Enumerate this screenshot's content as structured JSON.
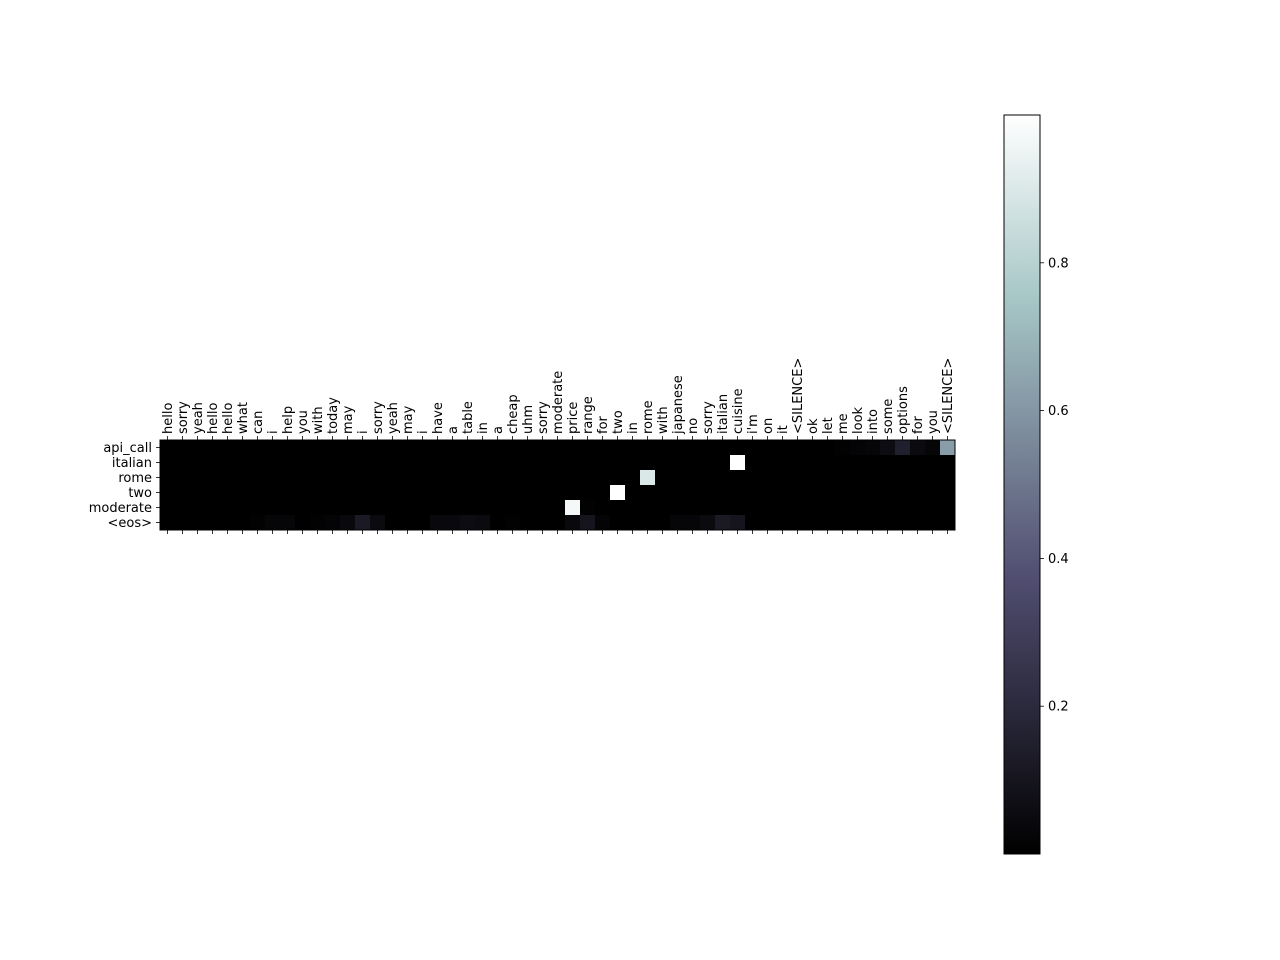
{
  "chart_data": {
    "type": "heatmap",
    "colormap": "bone",
    "x_labels": [
      "hello",
      "sorry",
      "yeah",
      "hello",
      "hello",
      "what",
      "can",
      "i",
      "help",
      "you",
      "with",
      "today",
      "may",
      "i",
      "sorry",
      "yeah",
      "may",
      "i",
      "have",
      "a",
      "table",
      "in",
      "a",
      "cheap",
      "uhm",
      "sorry",
      "moderate",
      "price",
      "range",
      "for",
      "two",
      "in",
      "rome",
      "with",
      "japanese",
      "no",
      "sorry",
      "italian",
      "cuisine",
      "i'm",
      "on",
      "it",
      "<SILENCE>",
      "ok",
      "let",
      "me",
      "look",
      "into",
      "some",
      "options",
      "for",
      "you",
      "<SILENCE>"
    ],
    "y_labels": [
      "api_call",
      "italian",
      "rome",
      "two",
      "moderate",
      "<eos>"
    ],
    "colorbar": {
      "ticks": [
        0.2,
        0.4,
        0.6,
        0.8
      ],
      "tick_labels": [
        "0.2",
        "0.4",
        "0.6",
        "0.8"
      ],
      "vmin": 0.0,
      "vmax": 1.0
    },
    "values": [
      [
        0,
        0,
        0,
        0,
        0,
        0,
        0,
        0,
        0,
        0,
        0,
        0,
        0,
        0,
        0,
        0,
        0,
        0,
        0,
        0,
        0,
        0,
        0,
        0,
        0,
        0,
        0,
        0,
        0,
        0,
        0,
        0,
        0,
        0,
        0,
        0,
        0,
        0,
        0,
        0,
        0,
        0,
        0,
        0,
        0,
        0.01,
        0.02,
        0.03,
        0.06,
        0.15,
        0.05,
        0.03,
        0.62
      ],
      [
        0,
        0,
        0,
        0,
        0,
        0,
        0,
        0,
        0,
        0,
        0,
        0,
        0,
        0,
        0,
        0,
        0,
        0,
        0,
        0,
        0,
        0,
        0,
        0,
        0,
        0,
        0,
        0,
        0,
        0,
        0,
        0,
        0,
        0,
        0,
        0,
        0,
        0,
        1.0,
        0,
        0,
        0,
        0,
        0,
        0,
        0,
        0,
        0,
        0,
        0,
        0,
        0,
        0
      ],
      [
        0,
        0,
        0,
        0,
        0,
        0,
        0,
        0,
        0,
        0,
        0,
        0,
        0,
        0,
        0,
        0,
        0,
        0,
        0,
        0,
        0,
        0,
        0,
        0,
        0,
        0,
        0,
        0,
        0,
        0,
        0,
        0,
        0.9,
        0,
        0,
        0,
        0,
        0,
        0,
        0,
        0,
        0,
        0,
        0,
        0,
        0,
        0,
        0,
        0,
        0,
        0,
        0,
        0
      ],
      [
        0,
        0,
        0,
        0,
        0,
        0,
        0,
        0,
        0,
        0,
        0,
        0,
        0,
        0,
        0,
        0,
        0,
        0,
        0,
        0,
        0,
        0,
        0,
        0,
        0,
        0,
        0,
        0,
        0,
        0,
        1.0,
        0,
        0,
        0,
        0,
        0,
        0,
        0,
        0,
        0,
        0,
        0,
        0,
        0,
        0,
        0,
        0,
        0,
        0,
        0,
        0,
        0,
        0
      ],
      [
        0,
        0,
        0,
        0,
        0,
        0,
        0,
        0,
        0,
        0,
        0,
        0,
        0,
        0,
        0,
        0,
        0,
        0,
        0,
        0,
        0,
        0,
        0,
        0,
        0,
        0,
        0,
        0.97,
        0.01,
        0,
        0,
        0,
        0,
        0,
        0,
        0,
        0,
        0,
        0,
        0,
        0,
        0,
        0,
        0,
        0,
        0,
        0,
        0,
        0,
        0,
        0,
        0,
        0
      ],
      [
        0,
        0,
        0,
        0,
        0,
        0,
        0.01,
        0.03,
        0.03,
        0,
        0.01,
        0.02,
        0.04,
        0.12,
        0.05,
        0,
        0,
        0,
        0.04,
        0.04,
        0.06,
        0.05,
        0,
        0.01,
        0,
        0,
        0,
        0.04,
        0.1,
        0.02,
        0,
        0,
        0,
        0,
        0.03,
        0.03,
        0.05,
        0.12,
        0.1,
        0,
        0,
        0,
        0,
        0,
        0,
        0,
        0,
        0,
        0,
        0,
        0,
        0,
        0
      ]
    ]
  }
}
